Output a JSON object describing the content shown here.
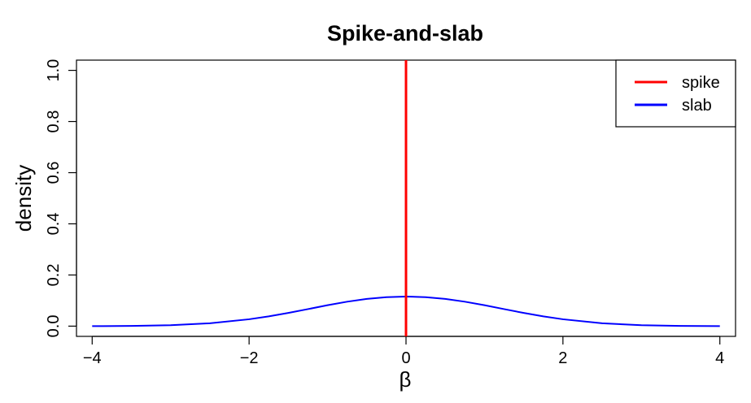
{
  "chart_data": {
    "type": "line",
    "title": "Spike-and-slab",
    "xlabel": "β",
    "ylabel": "density",
    "xlim": [
      -4.2,
      4.2
    ],
    "ylim": [
      -0.04,
      1.04
    ],
    "xticks": [
      -4,
      -2,
      0,
      2,
      4
    ],
    "xtick_labels": [
      "−4",
      "−2",
      "0",
      "2",
      "4"
    ],
    "yticks": [
      0.0,
      0.2,
      0.4,
      0.6,
      0.8,
      1.0
    ],
    "ytick_labels": [
      "0.0",
      "0.2",
      "0.4",
      "0.6",
      "0.8",
      "1.0"
    ],
    "grid": false,
    "legend_position": "top-right",
    "series": [
      {
        "name": "spike",
        "color": "#ff0000",
        "kind": "vertical-line",
        "x": [
          0,
          0
        ],
        "y": [
          -0.04,
          1.04
        ]
      },
      {
        "name": "slab",
        "color": "#0000ff",
        "kind": "curve",
        "x": [
          -4.0,
          -3.5,
          -3.0,
          -2.5,
          -2.0,
          -1.75,
          -1.5,
          -1.25,
          -1.0,
          -0.75,
          -0.5,
          -0.25,
          0.0,
          0.25,
          0.5,
          0.75,
          1.0,
          1.25,
          1.5,
          1.75,
          2.0,
          2.5,
          3.0,
          3.5,
          4.0
        ],
        "y": [
          0.0001,
          0.0008,
          0.0035,
          0.0112,
          0.0269,
          0.0381,
          0.0516,
          0.0666,
          0.0818,
          0.0956,
          0.1065,
          0.1134,
          0.1158,
          0.1134,
          0.1065,
          0.0956,
          0.0818,
          0.0666,
          0.0516,
          0.0381,
          0.0269,
          0.0112,
          0.0035,
          0.0008,
          0.0001
        ]
      }
    ]
  }
}
